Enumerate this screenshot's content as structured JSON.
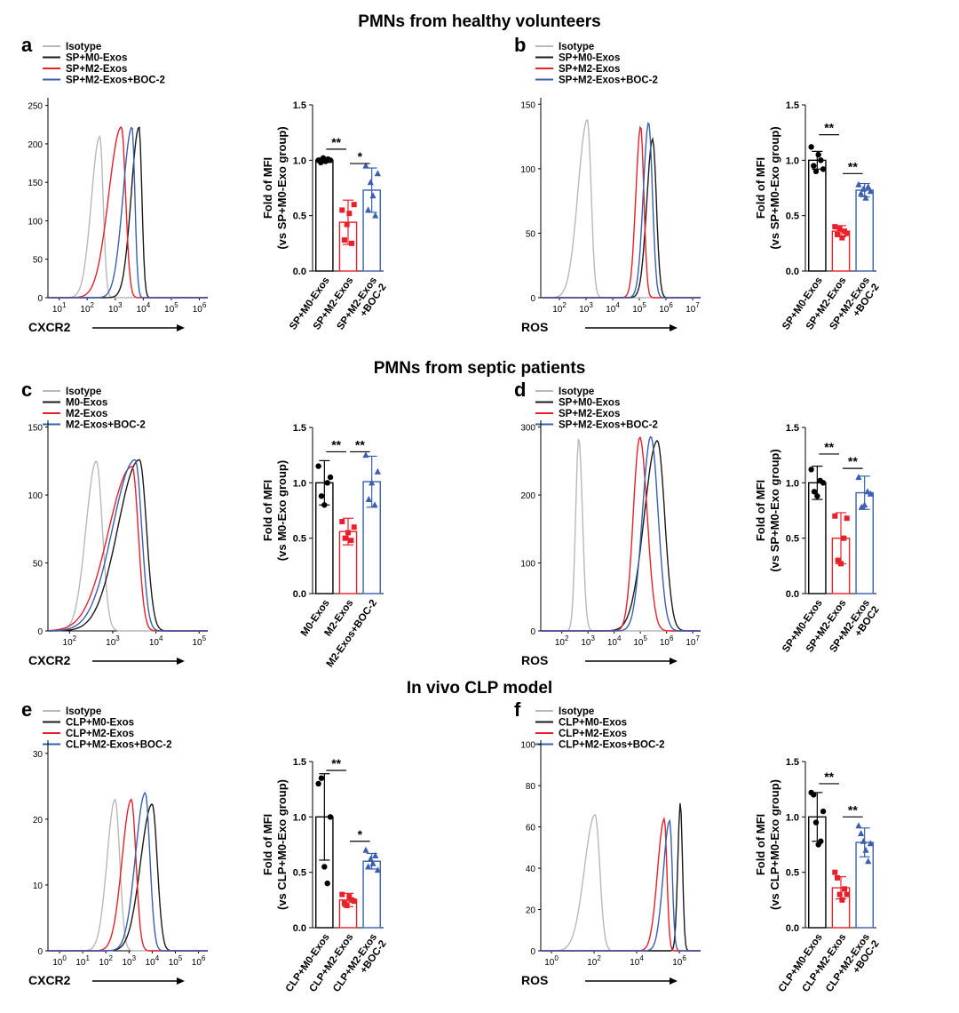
{
  "figure": {
    "sections": [
      {
        "id": "s1",
        "title": "PMNs from healthy volunteers"
      },
      {
        "id": "s2",
        "title": "PMNs from septic patients"
      },
      {
        "id": "s3",
        "title": "In vivo CLP model"
      }
    ],
    "colors": {
      "isotype": "#b8b8b8",
      "m0": "#1a1a1a",
      "m2": "#e8202a",
      "boc": "#3a5fae",
      "bar_m0": "#000000",
      "bar_m2": "#e8202a",
      "bar_boc": "#3a5fae"
    }
  },
  "chart_data": [
    {
      "panel": "a",
      "type": "line",
      "subtype": "flow-cytometry-histogram",
      "xlabel": "CXCR2",
      "xticks": [
        {
          "v": 1,
          "label": "1"
        },
        {
          "v": 2,
          "label": "2"
        },
        {
          "v": 3,
          "label": "3"
        },
        {
          "v": 4,
          "label": "4"
        },
        {
          "v": 5,
          "label": "5"
        },
        {
          "v": 6,
          "label": "6"
        }
      ],
      "x_range_log10": [
        0.6,
        6.3
      ],
      "ylim": [
        0,
        260
      ],
      "yticks": [
        0,
        50,
        100,
        150,
        200,
        250
      ],
      "legend": [
        "Isotype",
        "SP+M0-Exos",
        "SP+M2-Exos",
        "SP+M2-Exos+BOC-2"
      ],
      "series": [
        {
          "name": "Isotype",
          "peak_log10": 2.45,
          "peak": 210,
          "width_left": 0.3,
          "width_right": 0.12
        },
        {
          "name": "SP+M0-Exos",
          "peak_log10": 3.85,
          "peak": 222,
          "width_left": 0.28,
          "width_right": 0.1
        },
        {
          "name": "SP+M2-Exos",
          "peak_log10": 3.22,
          "peak": 222,
          "width_left": 0.45,
          "width_right": 0.15
        },
        {
          "name": "SP+M2-Exos+BOC-2",
          "peak_log10": 3.6,
          "peak": 222,
          "width_left": 0.32,
          "width_right": 0.1
        }
      ]
    },
    {
      "panel": "a",
      "type": "bar",
      "ylabel": [
        "Fold of MFI",
        "(vs SP+M0-Exo group)"
      ],
      "ylim": [
        0,
        1.5
      ],
      "yticks": [
        "0.0",
        "0.5",
        "1.0",
        "1.5"
      ],
      "categories": [
        [
          "SP+M0-Exos"
        ],
        [
          "SP+M2-Exos"
        ],
        [
          "SP+M2-Exos",
          "+BOC-2"
        ]
      ],
      "values": [
        1.0,
        0.44,
        0.73
      ],
      "errors": [
        0.02,
        0.2,
        0.2
      ],
      "points": [
        [
          1.0,
          0.98,
          1.02,
          0.99,
          1.01,
          1.0
        ],
        [
          0.55,
          0.28,
          0.42,
          0.52,
          0.25,
          0.6
        ],
        [
          0.95,
          0.55,
          0.8,
          0.68,
          0.5,
          0.88
        ]
      ],
      "sig": [
        {
          "from": 0,
          "to": 1,
          "label": "**",
          "y": 1.1
        },
        {
          "from": 1,
          "to": 2,
          "label": "*",
          "y": 0.97
        }
      ]
    },
    {
      "panel": "b",
      "type": "line",
      "subtype": "flow-cytometry-histogram",
      "xlabel": "ROS",
      "xticks": [
        {
          "v": 2,
          "label": "2"
        },
        {
          "v": 3,
          "label": "3"
        },
        {
          "v": 4,
          "label": "4"
        },
        {
          "v": 5,
          "label": "5"
        },
        {
          "v": 6,
          "label": "6"
        },
        {
          "v": 7,
          "label": "7"
        }
      ],
      "x_range_log10": [
        1.3,
        7.3
      ],
      "ylim": [
        0,
        155
      ],
      "yticks": [
        0,
        50,
        100,
        150
      ],
      "legend": [
        "Isotype",
        "SP+M0-Exos",
        "SP+M2-Exos",
        "SP+M2-Exos+BOC-2"
      ],
      "series": [
        {
          "name": "Isotype",
          "peak_log10": 3.05,
          "peak": 138,
          "width_left": 0.35,
          "width_right": 0.14
        },
        {
          "name": "SP+M0-Exos",
          "peak_log10": 5.5,
          "peak": 123,
          "width_left": 0.22,
          "width_right": 0.14
        },
        {
          "name": "SP+M2-Exos",
          "peak_log10": 5.05,
          "peak": 133,
          "width_left": 0.18,
          "width_right": 0.12
        },
        {
          "name": "SP+M2-Exos+BOC-2",
          "peak_log10": 5.35,
          "peak": 136,
          "width_left": 0.2,
          "width_right": 0.14
        }
      ]
    },
    {
      "panel": "b",
      "type": "bar",
      "ylabel": [
        "Fold of MFI",
        "(vs SP+M0-Exo group)"
      ],
      "ylim": [
        0,
        1.5
      ],
      "yticks": [
        "0.0",
        "0.5",
        "1.0",
        "1.5"
      ],
      "categories": [
        [
          "SP+M0-Exos"
        ],
        [
          "SP+M2-Exos"
        ],
        [
          "SP+M2-Exos",
          "+BOC-2"
        ]
      ],
      "values": [
        1.0,
        0.36,
        0.73
      ],
      "errors": [
        0.08,
        0.05,
        0.06
      ],
      "points": [
        [
          1.12,
          0.95,
          0.9,
          1.05,
          1.0,
          0.92
        ],
        [
          0.4,
          0.33,
          0.38,
          0.3,
          0.36,
          0.34
        ],
        [
          0.78,
          0.7,
          0.74,
          0.66,
          0.76,
          0.72
        ]
      ],
      "sig": [
        {
          "from": 0,
          "to": 1,
          "label": "**",
          "y": 1.23
        },
        {
          "from": 1,
          "to": 2,
          "label": "**",
          "y": 0.88
        }
      ]
    },
    {
      "panel": "c",
      "type": "line",
      "subtype": "flow-cytometry-histogram",
      "xlabel": "CXCR2",
      "xticks": [
        {
          "v": 2,
          "label": "2"
        },
        {
          "v": 3,
          "label": "3"
        },
        {
          "v": 4,
          "label": "4"
        },
        {
          "v": 5,
          "label": "5"
        }
      ],
      "x_range_log10": [
        1.5,
        5.2
      ],
      "ylim": [
        0,
        155
      ],
      "yticks": [
        0,
        50,
        100,
        150
      ],
      "legend": [
        "Isotype",
        "M0-Exos",
        "M2-Exos",
        "M2-Exos+BOC-2"
      ],
      "series": [
        {
          "name": "Isotype",
          "peak_log10": 2.62,
          "peak": 125,
          "width_left": 0.24,
          "width_right": 0.14
        },
        {
          "name": "M0-Exos",
          "peak_log10": 3.62,
          "peak": 126,
          "width_left": 0.5,
          "width_right": 0.16
        },
        {
          "name": "M2-Exos",
          "peak_log10": 3.45,
          "peak": 121,
          "width_left": 0.55,
          "width_right": 0.14
        },
        {
          "name": "M2-Exos+BOC-2",
          "peak_log10": 3.52,
          "peak": 126,
          "width_left": 0.52,
          "width_right": 0.15
        }
      ]
    },
    {
      "panel": "c",
      "type": "bar",
      "ylabel": [
        "Fold of MFI",
        "(vs M0-Exo group)"
      ],
      "ylim": [
        0,
        1.5
      ],
      "yticks": [
        "0.0",
        "0.5",
        "1.0",
        "1.5"
      ],
      "categories": [
        [
          "M0-Exos"
        ],
        [
          "M2-Exos"
        ],
        [
          "M2-Exos+BOC-2"
        ]
      ],
      "values": [
        1.0,
        0.56,
        1.01
      ],
      "errors": [
        0.2,
        0.12,
        0.23
      ],
      "points": [
        [
          1.15,
          0.88,
          0.8,
          1.0,
          1.05
        ],
        [
          0.65,
          0.5,
          0.55,
          0.48,
          0.6
        ],
        [
          1.25,
          0.85,
          1.0,
          0.8,
          1.1
        ]
      ],
      "sig": [
        {
          "from": 0,
          "to": 1,
          "label": "**",
          "y": 1.28
        },
        {
          "from": 1,
          "to": 2,
          "label": "**",
          "y": 1.28
        }
      ]
    },
    {
      "panel": "d",
      "type": "line",
      "subtype": "flow-cytometry-histogram",
      "xlabel": "ROS",
      "xticks": [
        {
          "v": 2,
          "label": "2"
        },
        {
          "v": 3,
          "label": "3"
        },
        {
          "v": 4,
          "label": "4"
        },
        {
          "v": 5,
          "label": "5"
        },
        {
          "v": 6,
          "label": "6"
        },
        {
          "v": 7,
          "label": "7"
        }
      ],
      "x_range_log10": [
        1.2,
        7.3
      ],
      "ylim": [
        0,
        310
      ],
      "yticks": [
        0,
        100,
        200,
        300
      ],
      "legend": [
        "Isotype",
        "SP+M0-Exos",
        "SP+M2-Exos",
        "SP+M2-Exos+BOC-2"
      ],
      "series": [
        {
          "name": "Isotype",
          "peak_log10": 2.65,
          "peak": 284,
          "width_left": 0.12,
          "width_right": 0.14
        },
        {
          "name": "SP+M0-Exos",
          "peak_log10": 5.65,
          "peak": 280,
          "width_left": 0.5,
          "width_right": 0.28
        },
        {
          "name": "SP+M2-Exos",
          "peak_log10": 4.98,
          "peak": 285,
          "width_left": 0.25,
          "width_right": 0.28
        },
        {
          "name": "SP+M2-Exos+BOC-2",
          "peak_log10": 5.4,
          "peak": 286,
          "width_left": 0.32,
          "width_right": 0.28
        }
      ]
    },
    {
      "panel": "d",
      "type": "bar",
      "ylabel": [
        "Fold of MFI",
        "(vs SP+M0-Exo group)"
      ],
      "ylim": [
        0,
        1.5
      ],
      "yticks": [
        "0.0",
        "0.5",
        "1.0",
        "1.5"
      ],
      "categories": [
        [
          "SP+M0-Exos"
        ],
        [
          "SP+M2-Exos"
        ],
        [
          "SP+M2-Exos",
          "+BOC2"
        ]
      ],
      "values": [
        1.0,
        0.5,
        0.91
      ],
      "errors": [
        0.15,
        0.23,
        0.15
      ],
      "points": [
        [
          1.12,
          0.92,
          0.88,
          1.02,
          1.0
        ],
        [
          0.7,
          0.3,
          0.27,
          0.5,
          0.68
        ],
        [
          1.05,
          0.78,
          0.8,
          0.92,
          0.9
        ]
      ],
      "sig": [
        {
          "from": 0,
          "to": 1,
          "label": "**",
          "y": 1.26
        },
        {
          "from": 1,
          "to": 2,
          "label": "**",
          "y": 1.13
        }
      ]
    },
    {
      "panel": "e",
      "type": "line",
      "subtype": "flow-cytometry-histogram",
      "xlabel": "CXCR2",
      "xticks": [
        {
          "v": 0,
          "label": "0"
        },
        {
          "v": 1,
          "label": "1"
        },
        {
          "v": 2,
          "label": "2"
        },
        {
          "v": 3,
          "label": "3"
        },
        {
          "v": 4,
          "label": "4"
        },
        {
          "v": 5,
          "label": "5"
        },
        {
          "v": 6,
          "label": "6"
        }
      ],
      "x_range_log10": [
        -0.5,
        6.4
      ],
      "ylim": [
        0,
        32
      ],
      "yticks": [
        0,
        10,
        20,
        30
      ],
      "legend": [
        "Isotype",
        "CLP+M0-Exos",
        "CLP+M2-Exos",
        "CLP+M2-Exos+BOC-2"
      ],
      "series": [
        {
          "name": "Isotype",
          "peak_log10": 2.4,
          "peak": 23,
          "width_left": 0.35,
          "width_right": 0.2
        },
        {
          "name": "CLP+M0-Exos",
          "peak_log10": 4.0,
          "peak": 22.3,
          "width_left": 0.5,
          "width_right": 0.22
        },
        {
          "name": "CLP+M2-Exos",
          "peak_log10": 3.1,
          "peak": 23,
          "width_left": 0.4,
          "width_right": 0.2
        },
        {
          "name": "CLP+M2-Exos+BOC-2",
          "peak_log10": 3.7,
          "peak": 24,
          "width_left": 0.42,
          "width_right": 0.2
        }
      ]
    },
    {
      "panel": "e",
      "type": "bar",
      "ylabel": [
        "Fold of MFI",
        "(vs CLP+M0-Exo group)"
      ],
      "ylim": [
        0,
        1.5
      ],
      "yticks": [
        "0.0",
        "0.5",
        "1.0",
        "1.5"
      ],
      "categories": [
        [
          "CLP+M0-Exos"
        ],
        [
          "CLP+M2-Exos"
        ],
        [
          "CLP+M2-Exos",
          "+BOC-2"
        ]
      ],
      "values": [
        1.0,
        0.25,
        0.6
      ],
      "errors": [
        0.39,
        0.06,
        0.07
      ],
      "points": [
        [
          1.3,
          1.35,
          0.55,
          0.4,
          1.0
        ],
        [
          0.3,
          0.22,
          0.2,
          0.28,
          0.25,
          0.24
        ],
        [
          0.7,
          0.55,
          0.62,
          0.58,
          0.65,
          0.52
        ]
      ],
      "sig": [
        {
          "from": 0,
          "to": 1,
          "label": "**",
          "y": 1.42
        },
        {
          "from": 1,
          "to": 2,
          "label": "*",
          "y": 0.78
        }
      ]
    },
    {
      "panel": "f",
      "type": "line",
      "subtype": "flow-cytometry-histogram",
      "xlabel": "ROS",
      "xticks": [
        {
          "v": 0,
          "label": "0"
        },
        {
          "v": 2,
          "label": "2"
        },
        {
          "v": 4,
          "label": "4"
        },
        {
          "v": 6,
          "label": "6"
        }
      ],
      "x_range_log10": [
        -0.5,
        7.0
      ],
      "ylim": [
        0,
        102
      ],
      "yticks": [
        0,
        20,
        40,
        60,
        80,
        100
      ],
      "legend": [
        "Isotype",
        "CLP+M0-Exos",
        "CLP+M2-Exos",
        "CLP+M2-Exos+BOC-2"
      ],
      "series": [
        {
          "name": "Isotype",
          "peak_log10": 2.05,
          "peak": 66,
          "width_left": 0.5,
          "width_right": 0.22
        },
        {
          "name": "CLP+M0-Exos",
          "peak_log10": 6.05,
          "peak": 72,
          "width_left": 0.12,
          "width_right": 0.1
        },
        {
          "name": "CLP+M2-Exos",
          "peak_log10": 5.3,
          "peak": 64,
          "width_left": 0.32,
          "width_right": 0.12
        },
        {
          "name": "CLP+M2-Exos+BOC-2",
          "peak_log10": 5.55,
          "peak": 63,
          "width_left": 0.3,
          "width_right": 0.12
        }
      ]
    },
    {
      "panel": "f",
      "type": "bar",
      "ylabel": [
        "Fold of MFI",
        "(vs CLP+M0-Exo group)"
      ],
      "ylim": [
        0,
        1.5
      ],
      "yticks": [
        "0.0",
        "0.5",
        "1.0",
        "1.5"
      ],
      "categories": [
        [
          "CLP+M0-Exos"
        ],
        [
          "CLP+M2-Exos"
        ],
        [
          "CLP+M2-Exos",
          "+BOC-2"
        ]
      ],
      "values": [
        1.0,
        0.36,
        0.77
      ],
      "errors": [
        0.22,
        0.1,
        0.13
      ],
      "points": [
        [
          1.22,
          1.2,
          0.95,
          0.75,
          0.78,
          1.05
        ],
        [
          0.5,
          0.45,
          0.3,
          0.25,
          0.35,
          0.3
        ],
        [
          0.92,
          0.85,
          0.78,
          0.7,
          0.6,
          0.76
        ]
      ],
      "sig": [
        {
          "from": 0,
          "to": 1,
          "label": "**",
          "y": 1.3
        },
        {
          "from": 1,
          "to": 2,
          "label": "**",
          "y": 1.0
        }
      ]
    }
  ]
}
